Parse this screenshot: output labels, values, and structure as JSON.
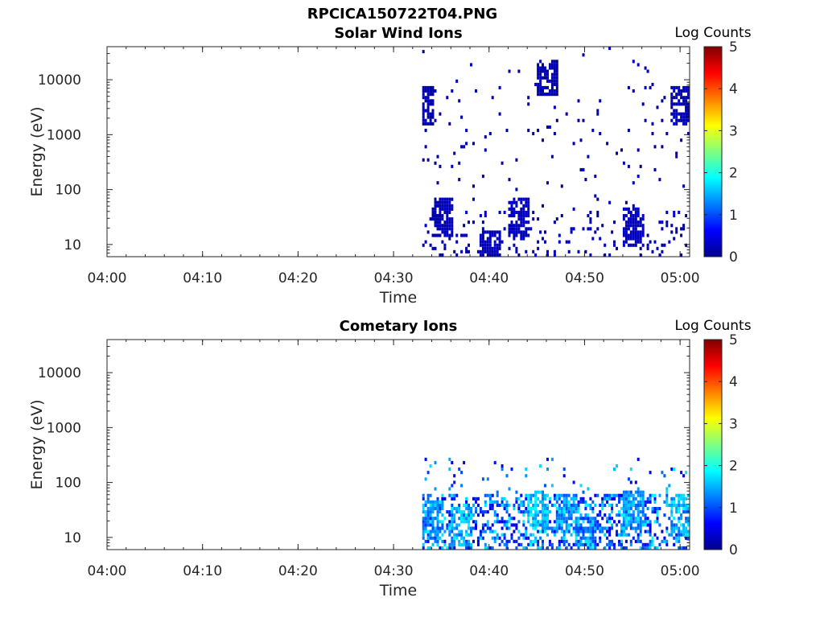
{
  "figure": {
    "title": "RPCICA150722T04.PNG",
    "colormap": "jet",
    "colorbar_range": [
      0,
      5
    ],
    "colorbar_ticks": [
      "0",
      "1",
      "2",
      "3",
      "4",
      "5"
    ],
    "colorbar_label": "Log Counts"
  },
  "chart_data": [
    {
      "type": "heatmap",
      "title": "Solar Wind Ions",
      "xlabel": "Time",
      "ylabel": "Energy (eV)",
      "xlim": [
        "04:00",
        "05:01"
      ],
      "x_ticks": [
        "04:00",
        "04:10",
        "04:20",
        "04:30",
        "04:40",
        "04:50",
        "05:00"
      ],
      "ylim": [
        6,
        40000
      ],
      "y_scale": "log",
      "y_ticks": [
        "10",
        "100",
        "1000",
        "10000"
      ],
      "colorbar_label": "Log Counts",
      "data_start": "04:33",
      "data_end": "05:01",
      "description_values": [
        {
          "time": "04:33",
          "energy_eV": 3000,
          "log_counts": 0.1
        },
        {
          "time": "04:35",
          "energy_eV": 30,
          "log_counts": 0.2
        },
        {
          "time": "04:40",
          "energy_eV": 8,
          "log_counts": 0.2
        },
        {
          "time": "04:43",
          "energy_eV": 30,
          "log_counts": 0.3
        },
        {
          "time": "04:46",
          "energy_eV": 10000,
          "log_counts": 0.1
        },
        {
          "time": "04:55",
          "energy_eV": 20,
          "log_counts": 0.3
        },
        {
          "time": "05:00",
          "energy_eV": 3000,
          "log_counts": 0.1
        }
      ]
    },
    {
      "type": "heatmap",
      "title": "Cometary Ions",
      "xlabel": "Time",
      "ylabel": "Energy (eV)",
      "xlim": [
        "04:00",
        "05:01"
      ],
      "x_ticks": [
        "04:00",
        "04:10",
        "04:20",
        "04:30",
        "04:40",
        "04:50",
        "05:00"
      ],
      "ylim": [
        6,
        40000
      ],
      "y_scale": "log",
      "y_ticks": [
        "10",
        "100",
        "1000",
        "10000"
      ],
      "colorbar_label": "Log Counts",
      "data_start": "04:33",
      "data_end": "05:01",
      "description_values": [
        {
          "time": "04:34",
          "energy_eV": 20,
          "log_counts": 1.2
        },
        {
          "time": "04:37",
          "energy_eV": 15,
          "log_counts": 1.4
        },
        {
          "time": "04:45",
          "energy_eV": 30,
          "log_counts": 1.6
        },
        {
          "time": "04:48",
          "energy_eV": 25,
          "log_counts": 1.2
        },
        {
          "time": "04:50",
          "energy_eV": 10,
          "log_counts": 1.0
        },
        {
          "time": "04:55",
          "energy_eV": 30,
          "log_counts": 1.3
        },
        {
          "time": "05:00",
          "energy_eV": 25,
          "log_counts": 1.5
        }
      ]
    }
  ]
}
